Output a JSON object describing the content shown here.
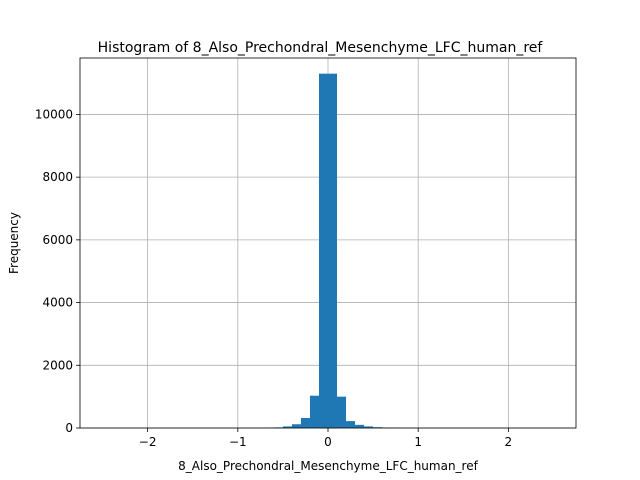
{
  "chart_data": {
    "type": "bar",
    "title": "Histogram of 8_Also_Prechondral_Mesenchyme_LFC_human_ref",
    "xlabel": "8_Also_Prechondral_Mesenchyme_LFC_human_ref",
    "ylabel": "Frequency",
    "xlim": [
      -2.75,
      2.75
    ],
    "ylim": [
      0,
      11800
    ],
    "grid": true,
    "xticks": [
      -2,
      -1,
      0,
      1,
      2
    ],
    "xtick_labels": [
      "−2",
      "−1",
      "0",
      "1",
      "2"
    ],
    "yticks": [
      0,
      2000,
      4000,
      6000,
      8000,
      10000
    ],
    "ytick_labels": [
      "0",
      "2000",
      "4000",
      "6000",
      "8000",
      "10000"
    ],
    "bins": [
      {
        "x0": -0.8,
        "x1": -0.7,
        "count": 3
      },
      {
        "x0": -0.7,
        "x1": -0.6,
        "count": 8
      },
      {
        "x0": -0.6,
        "x1": -0.5,
        "count": 20
      },
      {
        "x0": -0.5,
        "x1": -0.4,
        "count": 50
      },
      {
        "x0": -0.4,
        "x1": -0.3,
        "count": 120
      },
      {
        "x0": -0.3,
        "x1": -0.2,
        "count": 320
      },
      {
        "x0": -0.2,
        "x1": -0.1,
        "count": 1030
      },
      {
        "x0": -0.1,
        "x1": 0.0,
        "count": 11300
      },
      {
        "x0": 0.0,
        "x1": 0.1,
        "count": 11300
      },
      {
        "x0": 0.1,
        "x1": 0.2,
        "count": 1000
      },
      {
        "x0": 0.2,
        "x1": 0.3,
        "count": 220
      },
      {
        "x0": 0.3,
        "x1": 0.4,
        "count": 100
      },
      {
        "x0": 0.4,
        "x1": 0.5,
        "count": 50
      },
      {
        "x0": 0.5,
        "x1": 0.6,
        "count": 25
      },
      {
        "x0": 0.6,
        "x1": 0.7,
        "count": 15
      },
      {
        "x0": 0.7,
        "x1": 0.8,
        "count": 10
      }
    ],
    "colors": {
      "bar": "#1f77b4",
      "grid": "#b0b0b0",
      "axis": "#000000"
    }
  }
}
